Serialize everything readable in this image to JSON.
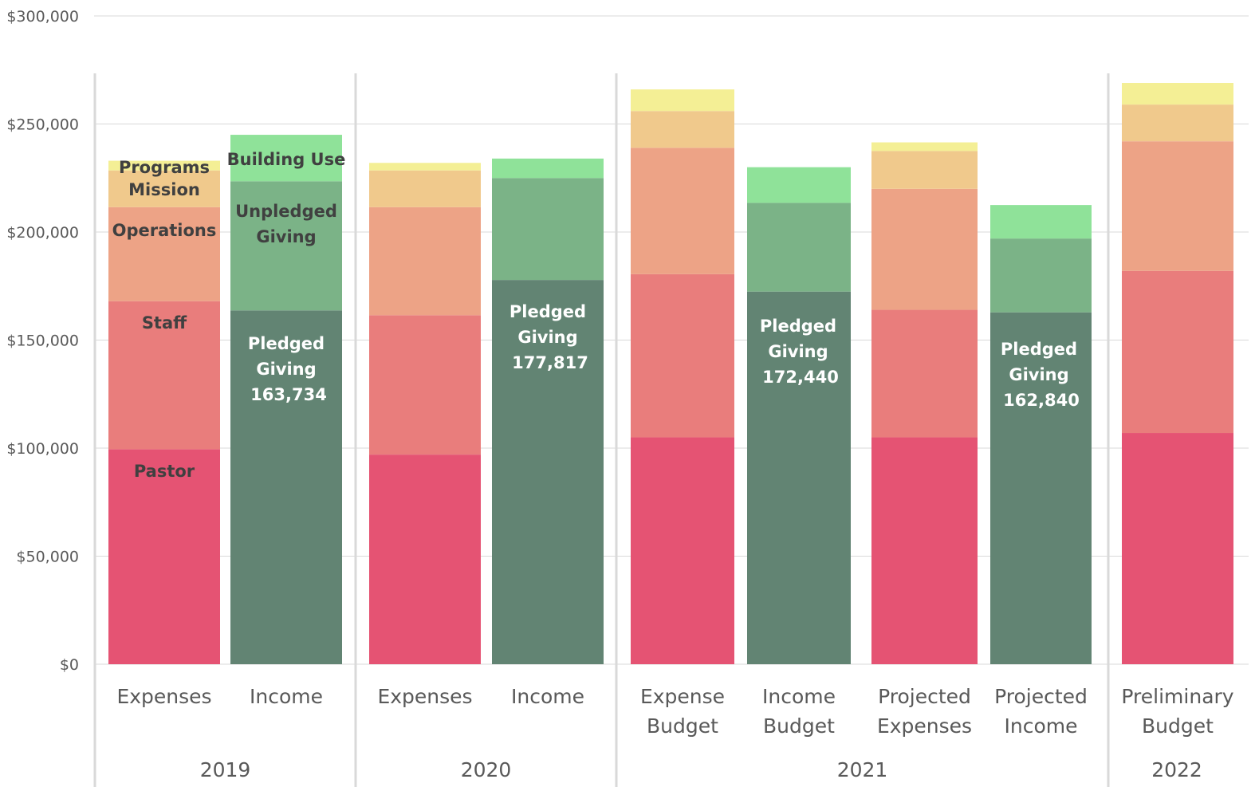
{
  "chart_data": {
    "type": "bar",
    "stacked": true,
    "ylim": [
      0,
      300000
    ],
    "ytick_values": [
      0,
      50000,
      100000,
      150000,
      200000,
      250000,
      300000
    ],
    "ytick_labels": [
      "$0",
      "$50,000",
      "$100,000",
      "$150,000",
      "$200,000",
      "$250,000",
      "$300,000"
    ],
    "grid": true,
    "groups": [
      {
        "label": "2019",
        "bars": [
          0,
          1
        ]
      },
      {
        "label": "2020",
        "bars": [
          2,
          3
        ]
      },
      {
        "label": "2021",
        "bars": [
          4,
          5,
          6,
          7
        ]
      },
      {
        "label": "2022",
        "bars": [
          8
        ]
      }
    ],
    "colors": {
      "Pastor": "#e55373",
      "Staff": "#e97d7c",
      "Operations": "#eda386",
      "Mission": "#f0c98c",
      "Programs": "#f4ef95",
      "Pledged Giving": "#628473",
      "Unpledged Giving": "#7bb387",
      "Building Use": "#8fe299"
    },
    "bars": [
      {
        "label": [
          "Expenses"
        ],
        "segments": [
          {
            "series": "Pastor",
            "value": 99500,
            "label": [
              "Pastor"
            ],
            "label_color": "#404040"
          },
          {
            "series": "Staff",
            "value": 68500,
            "label": [
              "Staff"
            ],
            "label_color": "#404040"
          },
          {
            "series": "Operations",
            "value": 43500,
            "label": [
              "Operations"
            ],
            "label_color": "#404040"
          },
          {
            "series": "Mission",
            "value": 17000,
            "label": [
              "Mission"
            ],
            "label_color": "#404040"
          },
          {
            "series": "Programs",
            "value": 4500,
            "label": [
              "Programs"
            ],
            "label_color": "#404040"
          }
        ]
      },
      {
        "label": [
          "Income"
        ],
        "segments": [
          {
            "series": "Pledged Giving",
            "value": 163734,
            "label": [
              "Pledged",
              "Giving",
              "163,734"
            ],
            "label_color": "#ffffff"
          },
          {
            "series": "Unpledged Giving",
            "value": 59766,
            "label": [
              "Unpledged",
              "Giving"
            ],
            "label_color": "#404040"
          },
          {
            "series": "Building Use",
            "value": 21500,
            "label": [
              "Building Use"
            ],
            "label_color": "#404040"
          }
        ]
      },
      {
        "label": [
          "Expenses"
        ],
        "segments": [
          {
            "series": "Pastor",
            "value": 97000
          },
          {
            "series": "Staff",
            "value": 64500
          },
          {
            "series": "Operations",
            "value": 50000
          },
          {
            "series": "Mission",
            "value": 17000
          },
          {
            "series": "Programs",
            "value": 3500
          }
        ]
      },
      {
        "label": [
          "Income"
        ],
        "segments": [
          {
            "series": "Pledged Giving",
            "value": 177817,
            "label": [
              "Pledged",
              "Giving",
              "177,817"
            ],
            "label_color": "#ffffff"
          },
          {
            "series": "Unpledged Giving",
            "value": 47183
          },
          {
            "series": "Building Use",
            "value": 9000
          }
        ]
      },
      {
        "label": [
          "Expense",
          "Budget"
        ],
        "segments": [
          {
            "series": "Pastor",
            "value": 105000
          },
          {
            "series": "Staff",
            "value": 75500
          },
          {
            "series": "Operations",
            "value": 58500
          },
          {
            "series": "Mission",
            "value": 17000
          },
          {
            "series": "Programs",
            "value": 10000
          }
        ]
      },
      {
        "label": [
          "Income",
          "Budget"
        ],
        "segments": [
          {
            "series": "Pledged Giving",
            "value": 172440,
            "label": [
              "Pledged",
              "Giving",
              "172,440"
            ],
            "label_color": "#ffffff"
          },
          {
            "series": "Unpledged Giving",
            "value": 41060
          },
          {
            "series": "Building Use",
            "value": 16500
          }
        ]
      },
      {
        "label": [
          "Projected",
          "Expenses"
        ],
        "segments": [
          {
            "series": "Pastor",
            "value": 105000
          },
          {
            "series": "Staff",
            "value": 59000
          },
          {
            "series": "Operations",
            "value": 56000
          },
          {
            "series": "Mission",
            "value": 17500
          },
          {
            "series": "Programs",
            "value": 4000
          }
        ]
      },
      {
        "label": [
          "Projected",
          "Income"
        ],
        "segments": [
          {
            "series": "Pledged Giving",
            "value": 162840,
            "label": [
              "Pledged",
              "Giving",
              "162,840"
            ],
            "label_color": "#ffffff"
          },
          {
            "series": "Unpledged Giving",
            "value": 34160
          },
          {
            "series": "Building Use",
            "value": 15500
          }
        ]
      },
      {
        "label": [
          "Preliminary",
          "Budget"
        ],
        "segments": [
          {
            "series": "Pastor",
            "value": 107000
          },
          {
            "series": "Staff",
            "value": 75000
          },
          {
            "series": "Operations",
            "value": 60000
          },
          {
            "series": "Mission",
            "value": 17000
          },
          {
            "series": "Programs",
            "value": 10000
          }
        ]
      }
    ]
  }
}
